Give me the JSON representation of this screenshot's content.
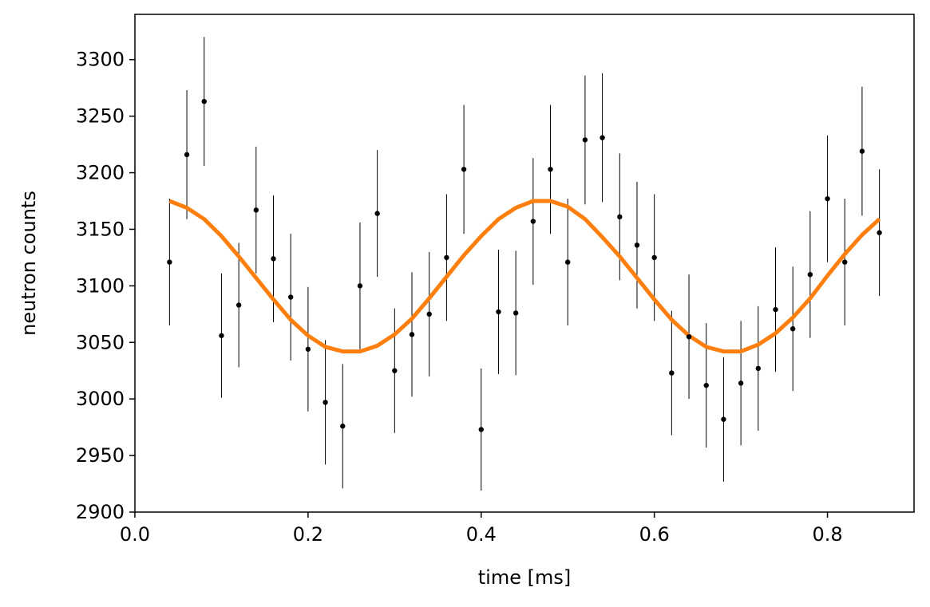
{
  "chart_data": {
    "type": "scatter",
    "title": "",
    "xlabel": "time [ms]",
    "ylabel": "neutron counts",
    "xlim": [
      0.0,
      0.9
    ],
    "ylim": [
      2900,
      3340
    ],
    "xticks": [
      0.0,
      0.2,
      0.4,
      0.6,
      0.8
    ],
    "xtick_labels": [
      "0.0",
      "0.2",
      "0.4",
      "0.6",
      "0.8"
    ],
    "yticks": [
      2900,
      2950,
      3000,
      3050,
      3100,
      3150,
      3200,
      3250,
      3300
    ],
    "ytick_labels": [
      "2900",
      "2950",
      "3000",
      "3050",
      "3100",
      "3150",
      "3200",
      "3250",
      "3300"
    ],
    "grid": false,
    "colors": {
      "points": "#000000",
      "errorbars": "#000000",
      "fit": "#ff7f0e"
    },
    "series": [
      {
        "kind": "errorbar",
        "x": [
          0.04,
          0.06,
          0.08,
          0.1,
          0.12,
          0.14,
          0.16,
          0.18,
          0.2,
          0.22,
          0.24,
          0.26,
          0.28,
          0.3,
          0.32,
          0.34,
          0.36,
          0.38,
          0.4,
          0.42,
          0.44,
          0.46,
          0.48,
          0.5,
          0.52,
          0.54,
          0.56,
          0.58,
          0.6,
          0.62,
          0.64,
          0.66,
          0.68,
          0.7,
          0.72,
          0.74,
          0.76,
          0.78,
          0.8,
          0.82,
          0.84,
          0.86
        ],
        "y": [
          3121,
          3216,
          3263,
          3056,
          3083,
          3167,
          3124,
          3090,
          3044,
          2997,
          2976,
          3100,
          3164,
          3025,
          3057,
          3075,
          3125,
          3203,
          2973,
          3077,
          3076,
          3157,
          3203,
          3121,
          3229,
          3231,
          3161,
          3136,
          3125,
          3023,
          3055,
          3012,
          2982,
          3014,
          3027,
          3079,
          3062,
          3110,
          3177,
          3121,
          3219,
          3147
        ],
        "yerr": [
          56,
          57,
          57,
          55,
          55,
          56,
          56,
          56,
          55,
          55,
          55,
          56,
          56,
          55,
          55,
          55,
          56,
          57,
          54,
          55,
          55,
          56,
          57,
          56,
          57,
          57,
          56,
          56,
          56,
          55,
          55,
          55,
          55,
          55,
          55,
          55,
          55,
          56,
          56,
          56,
          57,
          56
        ]
      },
      {
        "kind": "fit",
        "x": [
          0.04,
          0.06,
          0.08,
          0.1,
          0.12,
          0.14,
          0.16,
          0.18,
          0.2,
          0.22,
          0.24,
          0.26,
          0.28,
          0.3,
          0.32,
          0.34,
          0.36,
          0.38,
          0.4,
          0.42,
          0.44,
          0.46,
          0.48,
          0.5,
          0.52,
          0.54,
          0.56,
          0.58,
          0.6,
          0.62,
          0.64,
          0.66,
          0.68,
          0.7,
          0.72,
          0.74,
          0.76,
          0.78,
          0.8,
          0.82,
          0.84,
          0.86
        ],
        "y": [
          3175,
          3169,
          3159,
          3144,
          3126,
          3107,
          3088,
          3070,
          3056,
          3046,
          3042,
          3042,
          3047,
          3057,
          3071,
          3089,
          3108,
          3127,
          3144,
          3159,
          3169,
          3175,
          3175,
          3170,
          3159,
          3143,
          3126,
          3107,
          3088,
          3070,
          3056,
          3046,
          3042,
          3042,
          3048,
          3058,
          3072,
          3089,
          3109,
          3128,
          3145,
          3159
        ]
      }
    ]
  }
}
